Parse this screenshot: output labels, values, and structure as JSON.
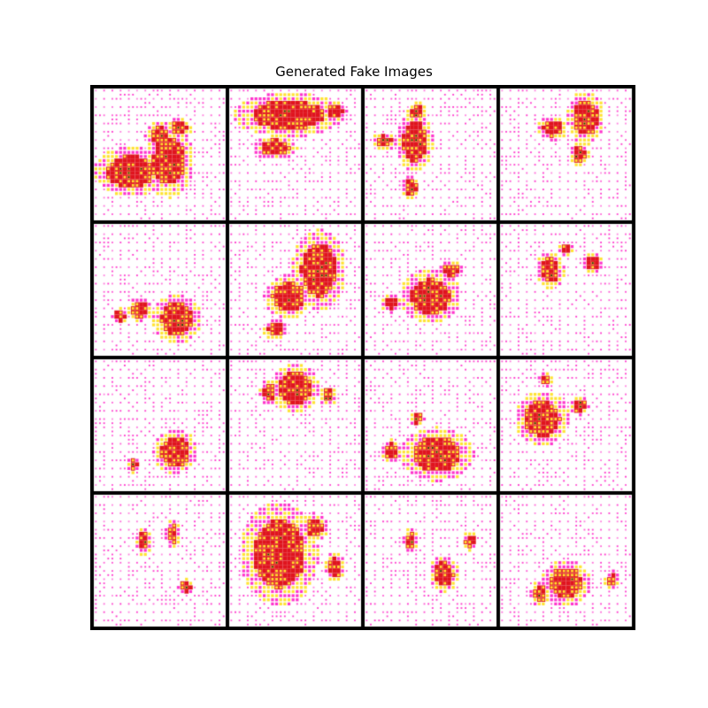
{
  "figure": {
    "title": "Generated Fake Images"
  },
  "image_grid": {
    "rows": 4,
    "cols": 4,
    "background_color": "#ffffff",
    "border_color": "#000000",
    "dot_color": "#ff33cc",
    "blob_colors": [
      "#e0141e",
      "#ffe233",
      "#1a1a1a"
    ],
    "tiles": [
      {
        "row": 0,
        "col": 0,
        "blobs": [
          [
            0.28,
            0.63,
            0.3,
            0.2
          ],
          [
            0.57,
            0.55,
            0.2,
            0.3
          ],
          [
            0.5,
            0.35,
            0.12,
            0.1
          ],
          [
            0.65,
            0.3,
            0.1,
            0.08
          ]
        ]
      },
      {
        "row": 0,
        "col": 1,
        "blobs": [
          [
            0.45,
            0.2,
            0.45,
            0.18
          ],
          [
            0.35,
            0.45,
            0.18,
            0.1
          ],
          [
            0.8,
            0.18,
            0.1,
            0.08
          ]
        ]
      },
      {
        "row": 0,
        "col": 2,
        "blobs": [
          [
            0.38,
            0.4,
            0.15,
            0.25
          ],
          [
            0.15,
            0.4,
            0.1,
            0.07
          ],
          [
            0.4,
            0.18,
            0.08,
            0.08
          ],
          [
            0.35,
            0.75,
            0.07,
            0.1
          ]
        ]
      },
      {
        "row": 0,
        "col": 3,
        "blobs": [
          [
            0.65,
            0.22,
            0.15,
            0.22
          ],
          [
            0.4,
            0.3,
            0.12,
            0.1
          ],
          [
            0.6,
            0.5,
            0.08,
            0.1
          ]
        ]
      },
      {
        "row": 1,
        "col": 0,
        "blobs": [
          [
            0.63,
            0.72,
            0.2,
            0.2
          ],
          [
            0.35,
            0.65,
            0.1,
            0.1
          ],
          [
            0.2,
            0.7,
            0.07,
            0.07
          ]
        ]
      },
      {
        "row": 1,
        "col": 1,
        "blobs": [
          [
            0.68,
            0.35,
            0.22,
            0.33
          ],
          [
            0.45,
            0.55,
            0.2,
            0.18
          ],
          [
            0.35,
            0.8,
            0.1,
            0.08
          ]
        ]
      },
      {
        "row": 1,
        "col": 2,
        "blobs": [
          [
            0.5,
            0.55,
            0.25,
            0.22
          ],
          [
            0.65,
            0.35,
            0.1,
            0.08
          ],
          [
            0.2,
            0.6,
            0.08,
            0.08
          ]
        ]
      },
      {
        "row": 1,
        "col": 3,
        "blobs": [
          [
            0.38,
            0.35,
            0.12,
            0.15
          ],
          [
            0.7,
            0.3,
            0.08,
            0.08
          ],
          [
            0.5,
            0.2,
            0.06,
            0.06
          ]
        ]
      },
      {
        "row": 2,
        "col": 0,
        "blobs": [
          [
            0.62,
            0.7,
            0.18,
            0.18
          ],
          [
            0.3,
            0.8,
            0.05,
            0.07
          ]
        ]
      },
      {
        "row": 2,
        "col": 1,
        "blobs": [
          [
            0.5,
            0.22,
            0.2,
            0.2
          ],
          [
            0.3,
            0.25,
            0.08,
            0.1
          ],
          [
            0.75,
            0.28,
            0.08,
            0.08
          ]
        ]
      },
      {
        "row": 2,
        "col": 2,
        "blobs": [
          [
            0.55,
            0.72,
            0.3,
            0.22
          ],
          [
            0.2,
            0.7,
            0.08,
            0.1
          ],
          [
            0.4,
            0.45,
            0.06,
            0.06
          ]
        ]
      },
      {
        "row": 2,
        "col": 3,
        "blobs": [
          [
            0.32,
            0.45,
            0.22,
            0.22
          ],
          [
            0.6,
            0.35,
            0.08,
            0.08
          ],
          [
            0.35,
            0.15,
            0.06,
            0.06
          ]
        ]
      },
      {
        "row": 3,
        "col": 0,
        "blobs": [
          [
            0.38,
            0.35,
            0.06,
            0.12
          ],
          [
            0.6,
            0.3,
            0.06,
            0.12
          ],
          [
            0.7,
            0.7,
            0.07,
            0.07
          ]
        ]
      },
      {
        "row": 3,
        "col": 1,
        "blobs": [
          [
            0.38,
            0.45,
            0.32,
            0.42
          ],
          [
            0.65,
            0.25,
            0.1,
            0.12
          ],
          [
            0.8,
            0.55,
            0.08,
            0.12
          ]
        ]
      },
      {
        "row": 3,
        "col": 2,
        "blobs": [
          [
            0.6,
            0.6,
            0.12,
            0.15
          ],
          [
            0.35,
            0.35,
            0.06,
            0.1
          ],
          [
            0.8,
            0.35,
            0.06,
            0.08
          ]
        ]
      },
      {
        "row": 3,
        "col": 3,
        "blobs": [
          [
            0.5,
            0.67,
            0.2,
            0.2
          ],
          [
            0.3,
            0.75,
            0.08,
            0.1
          ],
          [
            0.85,
            0.65,
            0.06,
            0.08
          ]
        ]
      }
    ]
  }
}
